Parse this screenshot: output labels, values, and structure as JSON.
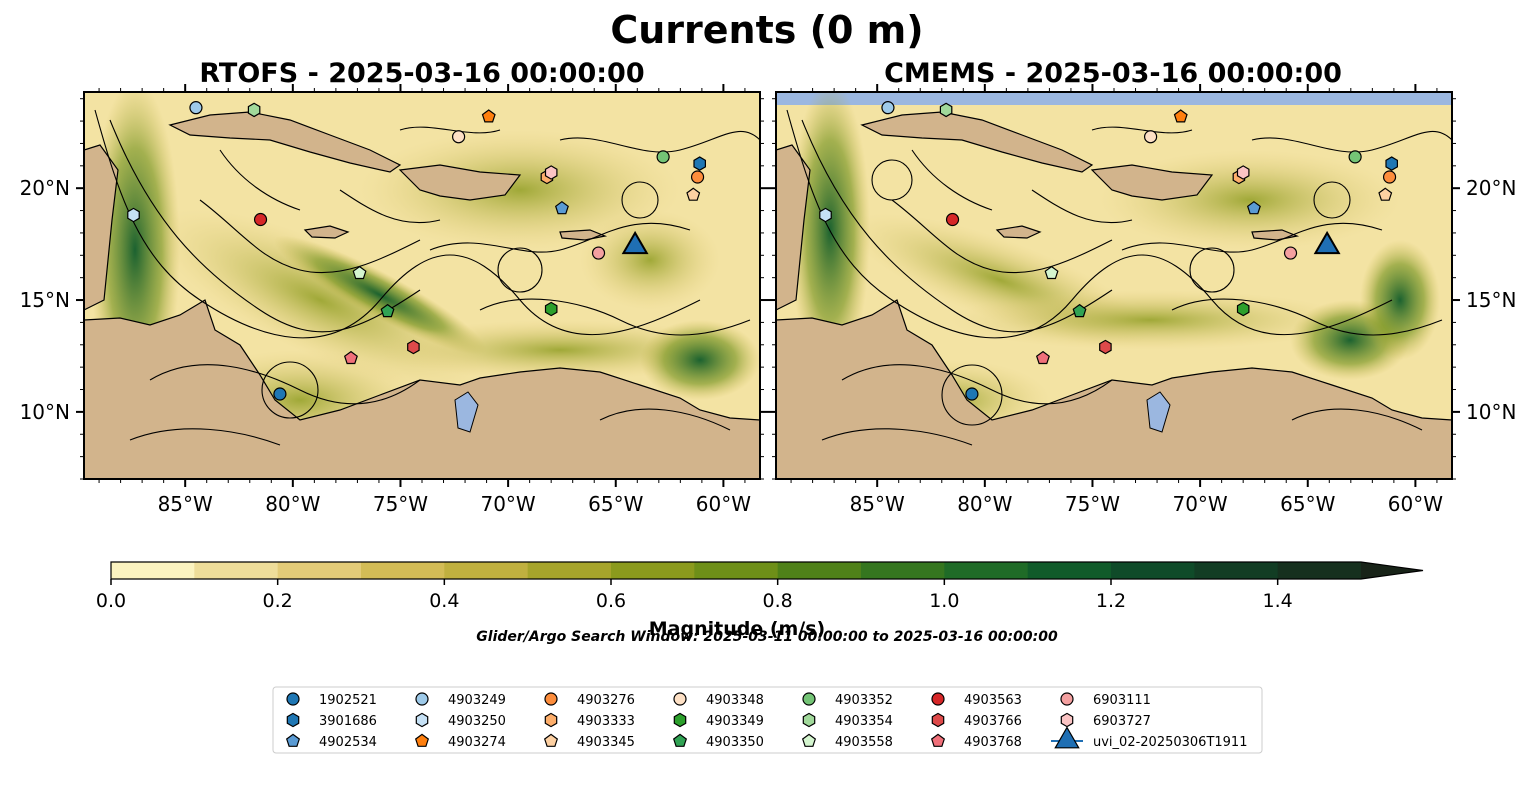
{
  "title": "Currents (0 m)",
  "chart_data": [
    {
      "type": "heatmap",
      "title": "RTOFS - 2025-03-16 00:00:00",
      "description_variable": "current magnitude with streamlines",
      "xlim": [
        -89.7,
        -58.3
      ],
      "ylim": [
        7.0,
        24.3
      ],
      "xticks": [
        -85,
        -80,
        -75,
        -70,
        -65,
        -60
      ],
      "xtick_labels": [
        "85°W",
        "80°W",
        "75°W",
        "70°W",
        "65°W",
        "60°W"
      ],
      "yticks": [
        10,
        15,
        20
      ],
      "ytick_labels": [
        "10°N",
        "15°N",
        "20°N"
      ],
      "ytick_side": "left",
      "markers": [
        {
          "id": "1902521",
          "lon": -80.6,
          "lat": 10.8
        },
        {
          "id": "3901686",
          "lon": -61.1,
          "lat": 21.1
        },
        {
          "id": "4902534",
          "lon": -67.5,
          "lat": 19.1
        },
        {
          "id": "4903249",
          "lon": -84.5,
          "lat": 23.6
        },
        {
          "id": "4903250",
          "lon": -87.4,
          "lat": 18.8
        },
        {
          "id": "4903274",
          "lon": -70.9,
          "lat": 23.2
        },
        {
          "id": "4903276",
          "lon": -61.2,
          "lat": 20.5
        },
        {
          "id": "4903333",
          "lon": -68.2,
          "lat": 20.5
        },
        {
          "id": "4903345",
          "lon": -61.4,
          "lat": 19.7
        },
        {
          "id": "4903348",
          "lon": -72.3,
          "lat": 22.3
        },
        {
          "id": "4903349",
          "lon": -68.0,
          "lat": 14.6
        },
        {
          "id": "4903350",
          "lon": -75.6,
          "lat": 14.5
        },
        {
          "id": "4903352",
          "lon": -62.8,
          "lat": 21.4
        },
        {
          "id": "4903354",
          "lon": -81.8,
          "lat": 23.5
        },
        {
          "id": "4903558",
          "lon": -76.9,
          "lat": 16.2
        },
        {
          "id": "4903563",
          "lon": -81.5,
          "lat": 18.6
        },
        {
          "id": "4903766",
          "lon": -74.4,
          "lat": 12.9
        },
        {
          "id": "4903768",
          "lon": -77.3,
          "lat": 12.4
        },
        {
          "id": "6903111",
          "lon": -65.8,
          "lat": 17.1
        },
        {
          "id": "6903727",
          "lon": -68.0,
          "lat": 20.7
        },
        {
          "id": "uvi_02-20250306T1911",
          "lon": -64.1,
          "lat": 17.4
        }
      ]
    },
    {
      "type": "heatmap",
      "title": "CMEMS - 2025-03-16 00:00:00",
      "description_variable": "current magnitude with streamlines",
      "xlim": [
        -89.7,
        -58.3
      ],
      "ylim": [
        7.0,
        24.3
      ],
      "xticks": [
        -85,
        -80,
        -75,
        -70,
        -65,
        -60
      ],
      "xtick_labels": [
        "85°W",
        "80°W",
        "75°W",
        "70°W",
        "65°W",
        "60°W"
      ],
      "yticks": [
        10,
        15,
        20
      ],
      "ytick_labels": [
        "10°N",
        "15°N",
        "20°N"
      ],
      "ytick_side": "right",
      "markers": [
        {
          "id": "1902521",
          "lon": -80.6,
          "lat": 10.8
        },
        {
          "id": "3901686",
          "lon": -61.1,
          "lat": 21.1
        },
        {
          "id": "4902534",
          "lon": -67.5,
          "lat": 19.1
        },
        {
          "id": "4903249",
          "lon": -84.5,
          "lat": 23.6
        },
        {
          "id": "4903250",
          "lon": -87.4,
          "lat": 18.8
        },
        {
          "id": "4903274",
          "lon": -70.9,
          "lat": 23.2
        },
        {
          "id": "4903276",
          "lon": -61.2,
          "lat": 20.5
        },
        {
          "id": "4903333",
          "lon": -68.2,
          "lat": 20.5
        },
        {
          "id": "4903345",
          "lon": -61.4,
          "lat": 19.7
        },
        {
          "id": "4903348",
          "lon": -72.3,
          "lat": 22.3
        },
        {
          "id": "4903349",
          "lon": -68.0,
          "lat": 14.6
        },
        {
          "id": "4903350",
          "lon": -75.6,
          "lat": 14.5
        },
        {
          "id": "4903352",
          "lon": -62.8,
          "lat": 21.4
        },
        {
          "id": "4903354",
          "lon": -81.8,
          "lat": 23.5
        },
        {
          "id": "4903558",
          "lon": -76.9,
          "lat": 16.2
        },
        {
          "id": "4903563",
          "lon": -81.5,
          "lat": 18.6
        },
        {
          "id": "4903766",
          "lon": -74.4,
          "lat": 12.9
        },
        {
          "id": "4903768",
          "lon": -77.3,
          "lat": 12.4
        },
        {
          "id": "6903111",
          "lon": -65.8,
          "lat": 17.1
        },
        {
          "id": "6903727",
          "lon": -68.0,
          "lat": 20.7
        },
        {
          "id": "uvi_02-20250306T1911",
          "lon": -64.1,
          "lat": 17.4
        }
      ]
    }
  ],
  "colorbar": {
    "label": "Magnitude (m/s)",
    "min": 0.0,
    "max": 1.5,
    "step": 0.1,
    "extend": "max",
    "ticks": [
      0.0,
      0.2,
      0.4,
      0.6,
      0.8,
      1.0,
      1.2,
      1.4
    ],
    "tick_labels": [
      "0.0",
      "0.2",
      "0.4",
      "0.6",
      "0.8",
      "1.0",
      "1.2",
      "1.4"
    ],
    "colors": [
      "#fbf3c0",
      "#eedd9a",
      "#e3cb78",
      "#d3bc56",
      "#c0b03f",
      "#a6a42b",
      "#8b9a1d",
      "#6e8f18",
      "#4f8119",
      "#35761f",
      "#1f6b27",
      "#105b2a",
      "#0f4b29",
      "#123d24",
      "#16301e",
      "#182318"
    ]
  },
  "search_window_note": "Glider/Argo Search Window: 2025-03-11 00:00:00 to 2025-03-16 00:00:00",
  "legend": {
    "placement": "bottom",
    "entries": [
      {
        "label": "1902521",
        "shape": "circle",
        "color": "#1f77b4"
      },
      {
        "label": "3901686",
        "shape": "hexagon",
        "color": "#1f77b4"
      },
      {
        "label": "4902534",
        "shape": "pentagon",
        "color": "#5a9bd4"
      },
      {
        "label": "4903249",
        "shape": "circle",
        "color": "#9ecae9"
      },
      {
        "label": "4903250",
        "shape": "hexagon",
        "color": "#c6e1f5"
      },
      {
        "label": "4903274",
        "shape": "pentagon",
        "color": "#ff7f0e"
      },
      {
        "label": "4903276",
        "shape": "circle",
        "color": "#fd8d3c"
      },
      {
        "label": "4903333",
        "shape": "hexagon",
        "color": "#fdae6b"
      },
      {
        "label": "4903345",
        "shape": "pentagon",
        "color": "#fdd0a2"
      },
      {
        "label": "4903348",
        "shape": "circle",
        "color": "#fde0c5"
      },
      {
        "label": "4903349",
        "shape": "hexagon",
        "color": "#2ca02c"
      },
      {
        "label": "4903350",
        "shape": "pentagon",
        "color": "#31a354"
      },
      {
        "label": "4903352",
        "shape": "circle",
        "color": "#74c476"
      },
      {
        "label": "4903354",
        "shape": "hexagon",
        "color": "#a1d99b"
      },
      {
        "label": "4903558",
        "shape": "pentagon",
        "color": "#d4f5cf"
      },
      {
        "label": "4903563",
        "shape": "circle",
        "color": "#d62728"
      },
      {
        "label": "4903766",
        "shape": "hexagon",
        "color": "#de4a4a"
      },
      {
        "label": "4903768",
        "shape": "pentagon",
        "color": "#f0707a"
      },
      {
        "label": "6903111",
        "shape": "circle",
        "color": "#f4a0a0"
      },
      {
        "label": "6903727",
        "shape": "hexagon",
        "color": "#fbc4c4"
      },
      {
        "label": "uvi_02-20250306T1911",
        "shape": "triangle",
        "color": "#1f6fb4"
      }
    ]
  }
}
